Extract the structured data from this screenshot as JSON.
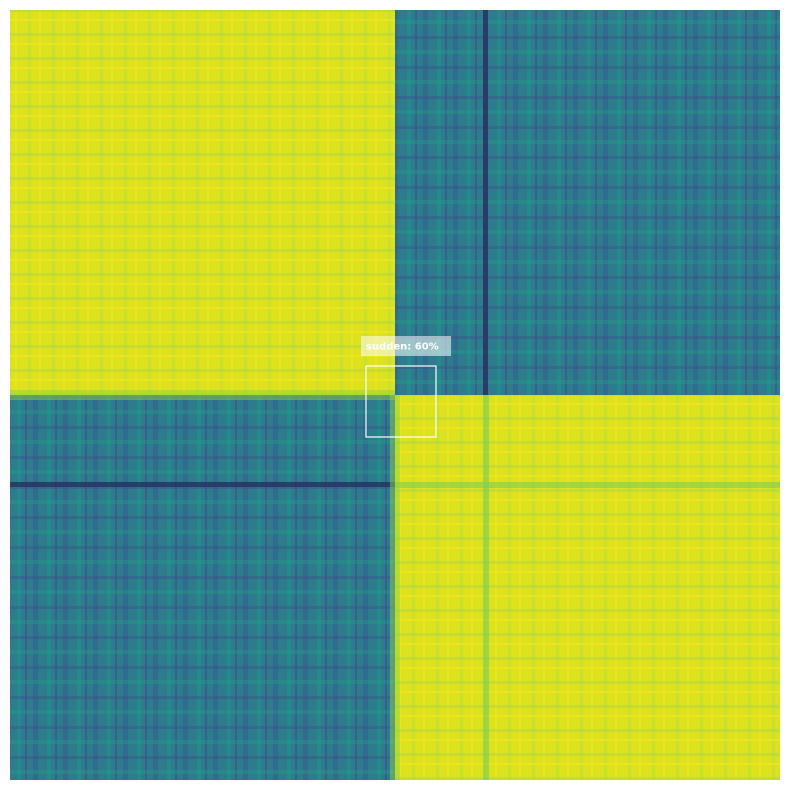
{
  "detections": [
    {
      "label": "sudden: 60%"
    }
  ]
}
